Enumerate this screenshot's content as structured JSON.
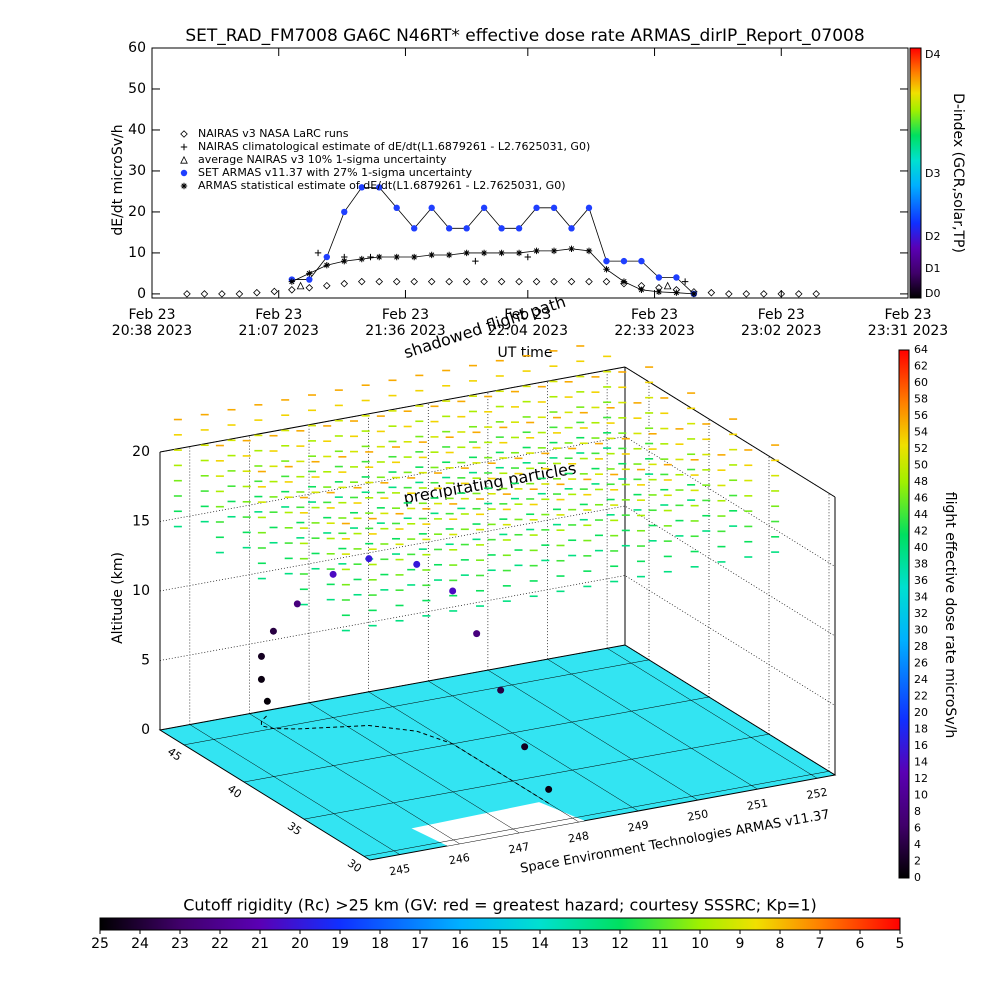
{
  "chart_data": [
    {
      "type": "line",
      "title": "SET_RAD_FM7008  GA6C N46RT* effective dose rate ARMAS_dirIP_Report_07008",
      "y_label": "dE/dt microSv/h",
      "x_label": "UT time",
      "xlim": [
        "20:38",
        "23:31"
      ],
      "xticks": [
        {
          "value": "20:38",
          "label": [
            "Feb 23",
            "20:38 2023"
          ]
        },
        {
          "value": "21:07",
          "label": [
            "Feb 23",
            "21:07 2023"
          ]
        },
        {
          "value": "21:36",
          "label": [
            "Feb 23",
            "21:36 2023"
          ]
        },
        {
          "value": "22:04",
          "label": [
            "Feb 23",
            "22:04 2023"
          ]
        },
        {
          "value": "22:33",
          "label": [
            "Feb 23",
            "22:33 2023"
          ]
        },
        {
          "value": "23:02",
          "label": [
            "Feb 23",
            "23:02 2023"
          ]
        },
        {
          "value": "23:31",
          "label": [
            "Feb 23",
            "23:31 2023"
          ]
        }
      ],
      "ylim": [
        -1,
        60
      ],
      "yticks": [
        0,
        10,
        20,
        30,
        40,
        50,
        60
      ],
      "series": [
        {
          "name": "NAIRAS v3 NASA LaRC runs",
          "marker": "diamond",
          "color": "#000000",
          "connect": false,
          "x": [
            "20:46",
            "20:50",
            "20:54",
            "20:58",
            "21:02",
            "21:06",
            "21:10",
            "21:14",
            "21:18",
            "21:22",
            "21:26",
            "21:30",
            "21:34",
            "21:38",
            "21:42",
            "21:46",
            "21:50",
            "21:54",
            "21:58",
            "22:02",
            "22:06",
            "22:10",
            "22:14",
            "22:18",
            "22:22",
            "22:26",
            "22:30",
            "22:34",
            "22:38",
            "22:42",
            "22:46",
            "22:50",
            "22:54",
            "22:58",
            "23:02",
            "23:06",
            "23:10"
          ],
          "values": [
            0,
            0,
            0,
            0,
            0.3,
            0.6,
            1,
            1.5,
            2,
            2.5,
            3,
            3,
            3,
            3,
            3,
            3,
            3,
            3,
            3,
            3,
            3,
            3,
            3,
            3,
            3,
            2.5,
            2,
            1.5,
            1,
            0.5,
            0.3,
            0,
            0,
            0,
            0,
            0,
            0
          ]
        },
        {
          "name": "NAIRAS climatological estimate of dE/dt(L1.6879261 - L2.7625031, G0)",
          "marker": "plus",
          "color": "#000000",
          "connect": false,
          "x": [
            "21:16",
            "21:22",
            "21:28",
            "21:52",
            "22:04",
            "22:40"
          ],
          "values": [
            10,
            9,
            9,
            8,
            9,
            3
          ]
        },
        {
          "name": "average NAIRAS v3 10% 1-sigma uncertainty",
          "marker": "triangle",
          "color": "#000000",
          "connect": false,
          "x": [
            "21:12",
            "22:36"
          ],
          "values": [
            2,
            2
          ]
        },
        {
          "name": "SET ARMAS v11.37 with 27% 1-sigma uncertainty",
          "marker": "circle",
          "color": "#1f3fff",
          "connect": true,
          "x": [
            "21:10",
            "21:14",
            "21:18",
            "21:22",
            "21:26",
            "21:30",
            "21:34",
            "21:38",
            "21:42",
            "21:46",
            "21:50",
            "21:54",
            "21:58",
            "22:02",
            "22:06",
            "22:10",
            "22:14",
            "22:18",
            "22:22",
            "22:26",
            "22:30",
            "22:34",
            "22:38",
            "22:42"
          ],
          "values": [
            3.5,
            3.5,
            9,
            20,
            26,
            26,
            21,
            16,
            21,
            16,
            16,
            21,
            16,
            16,
            21,
            21,
            16,
            21,
            8,
            8,
            8,
            4,
            4,
            0
          ]
        },
        {
          "name": "ARMAS statistical estimate of dE/dt(L1.6879261 - L2.7625031, G0)",
          "marker": "star",
          "color": "#000000",
          "connect": true,
          "x": [
            "21:10",
            "21:14",
            "21:18",
            "21:22",
            "21:26",
            "21:30",
            "21:34",
            "21:38",
            "21:42",
            "21:46",
            "21:50",
            "21:54",
            "21:58",
            "22:02",
            "22:06",
            "22:10",
            "22:14",
            "22:18",
            "22:22",
            "22:26",
            "22:30",
            "22:34",
            "22:38",
            "22:42"
          ],
          "values": [
            3,
            5,
            7,
            8,
            8.5,
            9,
            9,
            9,
            9.5,
            9.5,
            10,
            10,
            10,
            10,
            10.5,
            10.5,
            11,
            10.5,
            6,
            3,
            1,
            0.5,
            0.3,
            0
          ]
        }
      ],
      "colorbar": {
        "label": "D-index (GCR,solar,TP)",
        "ticks": [
          "D0",
          "D1",
          "D2",
          "D3",
          "D4"
        ]
      }
    },
    {
      "type": "path3d",
      "annotations": [
        "shadowed flight path",
        "precipitating particles"
      ],
      "footer": "Space Environment Technologies ARMAS v11.37",
      "z_label": "Altitude (km)",
      "xlim": [
        244.5,
        252.3
      ],
      "xticks": [
        245,
        246,
        247,
        248,
        249,
        250,
        251,
        252
      ],
      "ylim": [
        29.5,
        47
      ],
      "yticks": [
        30,
        35,
        40,
        45
      ],
      "zlim": [
        0,
        20
      ],
      "zticks": [
        0,
        5,
        10,
        15,
        20
      ],
      "series": [
        {
          "x": [
            248.0,
            248.0,
            248.0,
            248.0,
            248.0,
            247.8,
            247.3,
            246.8,
            246.3,
            246.0,
            245.9,
            246.0,
            246.2
          ],
          "y": [
            32,
            34,
            36,
            38,
            40,
            42,
            43.5,
            44,
            44.5,
            45,
            45.5,
            46,
            46.5
          ],
          "z": [
            1,
            3,
            6,
            9,
            11,
            12,
            12,
            11,
            9,
            7,
            5,
            3,
            1
          ],
          "values": [
            1,
            2,
            4,
            8,
            14,
            16,
            16,
            14,
            8,
            4,
            2,
            1,
            0.5
          ]
        }
      ],
      "colorbar": {
        "label": "flight effective dose rate microSv/h",
        "lim": [
          0,
          64
        ],
        "ticks": [
          0,
          2,
          4,
          6,
          8,
          10,
          12,
          14,
          16,
          18,
          20,
          22,
          24,
          26,
          28,
          30,
          32,
          34,
          36,
          38,
          40,
          42,
          44,
          46,
          48,
          50,
          52,
          54,
          56,
          58,
          60,
          62,
          64
        ]
      }
    },
    {
      "type": "colorbar",
      "title": "Cutoff rigidity (Rc) >25 km (GV: red = greatest hazard; courtesy SSSRC; Kp=1)",
      "lim": [
        25,
        5
      ],
      "ticks": [
        25,
        24,
        23,
        22,
        21,
        20,
        19,
        18,
        17,
        16,
        15,
        14,
        13,
        12,
        11,
        10,
        9,
        8,
        7,
        6,
        5
      ]
    }
  ]
}
